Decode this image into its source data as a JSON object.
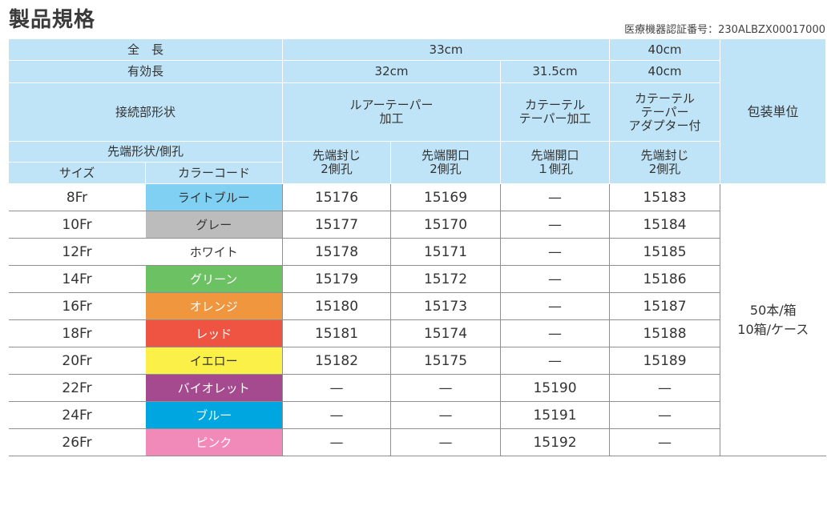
{
  "title": "製品規格",
  "approval_number": "医療機器認証番号：230ALBZX00017000",
  "header": {
    "total_length_label": "全　長",
    "total_length_33": "33cm",
    "total_length_40": "40cm",
    "effective_length_label": "有効長",
    "effective_32": "32cm",
    "effective_315": "31.5cm",
    "effective_40": "40cm",
    "connector_label": "接続部形状",
    "connector_luer_1": "ルアーテーパー",
    "connector_luer_2": "加工",
    "connector_cath_1": "カテーテル",
    "connector_cath_2": "テーパー加工",
    "connector_adapter_1": "カテーテル",
    "connector_adapter_2": "テーパー",
    "connector_adapter_3": "アダプター付",
    "packaging_label": "包装単位",
    "tip_label": "先端形状/側孔",
    "size_label": "サイズ",
    "color_code_label": "カラーコード",
    "col1_1": "先端封じ",
    "col1_2": "2側孔",
    "col2_1": "先端開口",
    "col2_2": "2側孔",
    "col3_1": "先端開口",
    "col3_2": "１側孔",
    "col4_1": "先端封じ",
    "col4_2": "2側孔"
  },
  "packaging": {
    "line1": "50本/箱",
    "line2": "10箱/ケース"
  },
  "rows": [
    {
      "size": "8Fr",
      "color": "ライトブルー",
      "bg": "#7fd0f2",
      "c1": "15176",
      "c2": "15169",
      "c3": "—",
      "c4": "15183"
    },
    {
      "size": "10Fr",
      "color": "グレー",
      "bg": "#bcbcbc",
      "c1": "15177",
      "c2": "15170",
      "c3": "—",
      "c4": "15184"
    },
    {
      "size": "12Fr",
      "color": "ホワイト",
      "bg": "#ffffff",
      "c1": "15178",
      "c2": "15171",
      "c3": "—",
      "c4": "15185"
    },
    {
      "size": "14Fr",
      "color": "グリーン",
      "bg": "#6cc163",
      "c1": "15179",
      "c2": "15172",
      "c3": "—",
      "c4": "15186"
    },
    {
      "size": "16Fr",
      "color": "オレンジ",
      "bg": "#f0963e",
      "c1": "15180",
      "c2": "15173",
      "c3": "—",
      "c4": "15187"
    },
    {
      "size": "18Fr",
      "color": "レッド",
      "bg": "#ef5443",
      "c1": "15181",
      "c2": "15174",
      "c3": "—",
      "c4": "15188"
    },
    {
      "size": "20Fr",
      "color": "イエロー",
      "bg": "#faf048",
      "c1": "15182",
      "c2": "15175",
      "c3": "—",
      "c4": "15189"
    },
    {
      "size": "22Fr",
      "color": "バイオレット",
      "bg": "#a64a8f",
      "c1": "—",
      "c2": "—",
      "c3": "15190",
      "c4": "—"
    },
    {
      "size": "24Fr",
      "color": "ブルー",
      "bg": "#00a6df",
      "c1": "—",
      "c2": "—",
      "c3": "15191",
      "c4": "—"
    },
    {
      "size": "26Fr",
      "color": "ピンク",
      "bg": "#f28ab9",
      "c1": "—",
      "c2": "—",
      "c3": "15192",
      "c4": "—"
    }
  ]
}
